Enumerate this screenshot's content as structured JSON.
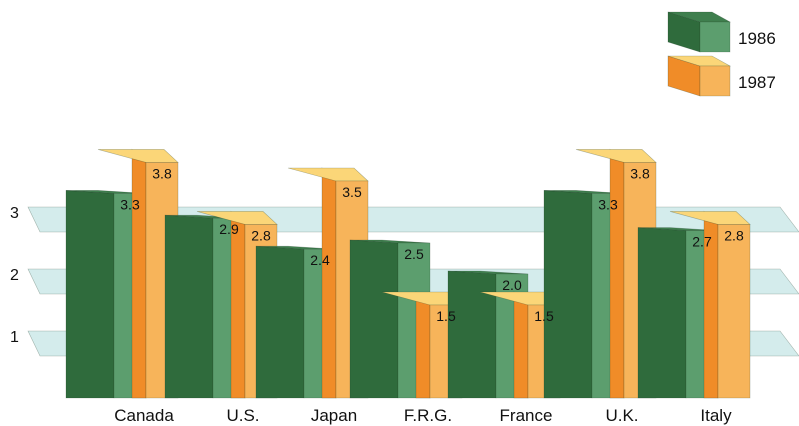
{
  "chart_data": {
    "type": "bar",
    "categories": [
      "Canada",
      "U.S.",
      "Japan",
      "F.R.G.",
      "France",
      "U.K.",
      "Italy"
    ],
    "series": [
      {
        "name": "1986",
        "values": [
          3.3,
          2.9,
          2.4,
          2.5,
          2.0,
          3.3,
          2.7
        ],
        "color": "#2f6b3c"
      },
      {
        "name": "1987",
        "values": [
          3.8,
          2.8,
          3.5,
          1.5,
          1.5,
          3.8,
          2.8
        ],
        "color": "#f5a540"
      }
    ],
    "value_labels": [
      [
        "3.3",
        "2.9",
        "2.4",
        "2.5",
        "2.0",
        "3.3",
        "2.7"
      ],
      [
        "3.8",
        "2.8",
        "3.5",
        "1.5",
        "1.5",
        "3.8",
        "2.8"
      ]
    ],
    "y_ticks": [
      "1",
      "2",
      "3"
    ],
    "ylim": [
      0,
      3.9
    ],
    "grid": true,
    "legend": {
      "placement": "top-right",
      "entries": [
        "1986",
        "1987"
      ]
    },
    "colors": {
      "green_front": "#5c9e6e",
      "green_side": "#2f6b3c",
      "green_top": "#3f7f4e",
      "orange_front": "#f7b45a",
      "orange_side": "#f08c28",
      "orange_top": "#fbd678",
      "plane": "#d4ecec"
    }
  }
}
